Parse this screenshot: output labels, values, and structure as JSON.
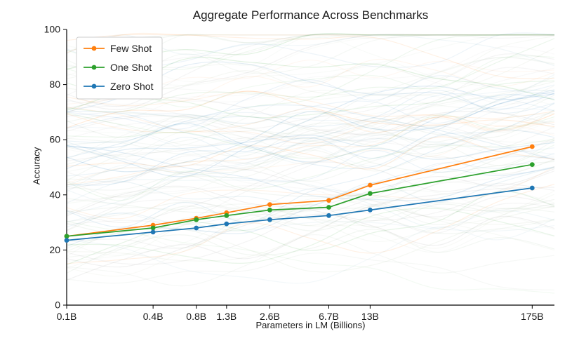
{
  "chart_data": {
    "type": "line",
    "title": "Aggregate Performance Across Benchmarks",
    "xlabel": "Parameters in LM (Billions)",
    "ylabel": "Accuracy",
    "x_scale": "log",
    "x": [
      0.1,
      0.4,
      0.8,
      1.3,
      2.6,
      6.7,
      13,
      175
    ],
    "x_tick_labels": [
      "0.1B",
      "0.4B",
      "0.8B",
      "1.3B",
      "2.6B",
      "6.7B",
      "13B",
      "175B"
    ],
    "xlim": [
      0.1,
      250
    ],
    "ylim": [
      0,
      100
    ],
    "y_ticks": [
      0,
      20,
      40,
      60,
      80,
      100
    ],
    "grid": false,
    "legend_position": "upper-left",
    "series": [
      {
        "name": "Few Shot",
        "color": "#ff7f0e",
        "values": [
          25.0,
          29.0,
          31.5,
          33.5,
          36.5,
          38.0,
          43.5,
          57.5
        ]
      },
      {
        "name": "One Shot",
        "color": "#2ca02c",
        "values": [
          25.0,
          28.0,
          31.0,
          32.5,
          34.5,
          35.5,
          40.5,
          51.0
        ]
      },
      {
        "name": "Zero Shot",
        "color": "#1f77b4",
        "values": [
          23.5,
          26.5,
          28.0,
          29.5,
          31.0,
          32.5,
          34.5,
          42.5
        ]
      }
    ],
    "background_lines": {
      "count": 120,
      "palette": [
        "#9e9e9e",
        "#9e9e9e",
        "#a5bfa5",
        "#a5bfa5",
        "#2ca02c",
        "#1f77b4",
        "#ff7f0e",
        "#7fb3c8",
        "#b7c9a8"
      ]
    }
  }
}
